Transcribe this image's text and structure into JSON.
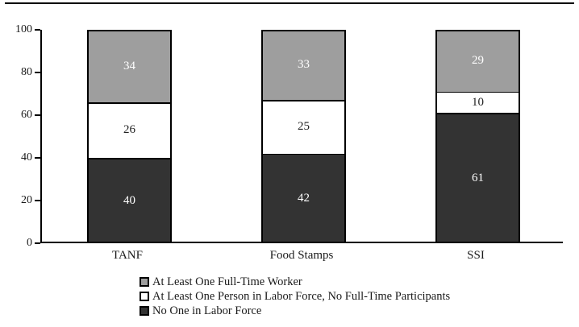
{
  "chart_data": {
    "type": "bar",
    "stacked": true,
    "categories": [
      "TANF",
      "Food Stamps",
      "SSI"
    ],
    "series": [
      {
        "name": "No One in Labor Force",
        "values": [
          40,
          42,
          61
        ],
        "color": "#333333",
        "label_color": "#ffffff"
      },
      {
        "name": "At Least One Person in Labor Force, No Full-Time Participants",
        "values": [
          26,
          25,
          10
        ],
        "color": "#ffffff",
        "label_color": "#222222"
      },
      {
        "name": "At Least One Full-Time Worker",
        "values": [
          34,
          33,
          29
        ],
        "color": "#9e9e9e",
        "label_color": "#ffffff"
      }
    ],
    "title": "",
    "xlabel": "",
    "ylabel": "",
    "ylim": [
      0,
      100
    ],
    "yticks": [
      0,
      20,
      40,
      60,
      80,
      100
    ],
    "grid": false,
    "legend_position": "bottom-left"
  },
  "legend": {
    "items": [
      {
        "label": "At Least One Full-Time Worker",
        "color": "#9e9e9e"
      },
      {
        "label": "At Least One Person in Labor Force, No Full-Time Participants",
        "color": "#ffffff"
      },
      {
        "label": "No One in Labor Force",
        "color": "#333333"
      }
    ]
  },
  "colors": {
    "axis": "#000000",
    "bar_border": "#000000",
    "background": "#ffffff"
  }
}
